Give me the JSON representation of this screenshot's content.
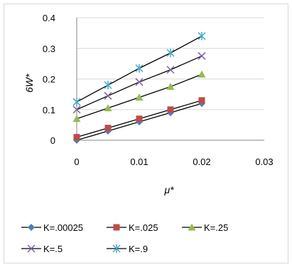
{
  "chart_data": {
    "type": "line",
    "xlabel": "μ*",
    "ylabel": "6W*",
    "xlim": [
      0,
      0.03
    ],
    "ylim": [
      0,
      0.4
    ],
    "xticks": [
      "0",
      "0.01",
      "0.02",
      "0.03"
    ],
    "yticks": [
      "0",
      "0.1",
      "0.2",
      "0.3",
      "0.4"
    ],
    "grid": "horizontal",
    "legend_position": "bottom",
    "x": [
      0,
      0.005,
      0.01,
      0.015,
      0.02
    ],
    "series": [
      {
        "name": "K=.00025",
        "marker": "diamond",
        "color": "#4a7ebb",
        "values": [
          0.0,
          0.03,
          0.06,
          0.09,
          0.12
        ]
      },
      {
        "name": "K=.025",
        "marker": "square",
        "color": "#be4b48",
        "values": [
          0.01,
          0.04,
          0.07,
          0.1,
          0.13
        ]
      },
      {
        "name": "K=.25",
        "marker": "triangle",
        "color": "#98b954",
        "values": [
          0.07,
          0.105,
          0.14,
          0.175,
          0.215
        ]
      },
      {
        "name": "K=.5",
        "marker": "x",
        "color": "#7d60a0",
        "values": [
          0.1,
          0.145,
          0.19,
          0.23,
          0.275
        ]
      },
      {
        "name": "K=.9",
        "marker": "asterisk",
        "color": "#46aac5",
        "values": [
          0.125,
          0.18,
          0.235,
          0.285,
          0.34
        ]
      }
    ]
  }
}
